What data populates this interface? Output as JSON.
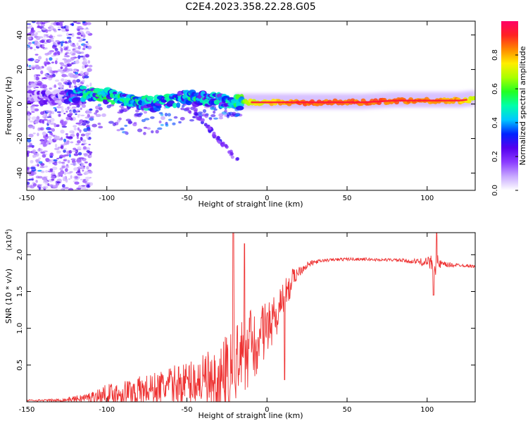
{
  "title": "C2E4.2023.358.22.28.G05",
  "colors": {
    "snr_line": "#ee3333",
    "axis": "#000000"
  },
  "chart_data": [
    {
      "type": "heatmap",
      "name": "spectrogram",
      "xlabel": "Height of straight line (km)",
      "ylabel": "Frequency (Hz)",
      "xlim": [
        -150,
        130
      ],
      "ylim": [
        -50,
        48
      ],
      "xticks": [
        -150,
        -100,
        -50,
        0,
        50,
        100
      ],
      "xtick_labels": [
        "-150",
        "-100",
        "-50",
        "0",
        "50",
        "100"
      ],
      "yticks": [
        -40,
        -20,
        0,
        20,
        40
      ],
      "ytick_labels": [
        "-40",
        "-20",
        "0",
        "20",
        "40"
      ],
      "colorbar": {
        "label": "Normalized spectral amplitude",
        "range": [
          0,
          1
        ],
        "ticks": [
          0,
          0.2,
          0.4,
          0.6,
          0.8
        ],
        "tick_labels": [
          "0.0",
          "0.2",
          "0.4",
          "0.6",
          "0.8"
        ],
        "colormap": [
          "#ffffff",
          "#c8a8ff",
          "#8c3cff",
          "#5500ee",
          "#0022ff",
          "#00c8ff",
          "#00ffaa",
          "#22ff22",
          "#aaff00",
          "#ffee00",
          "#ff8800",
          "#ff2222",
          "#ff0066"
        ]
      },
      "ridge": {
        "x": [
          -150,
          -130,
          -115,
          -100,
          -90,
          -80,
          -70,
          -60,
          -50,
          -40,
          -30,
          -20,
          -10,
          0,
          10,
          20,
          40,
          60,
          80,
          100,
          120,
          130
        ],
        "freq": [
          4,
          4,
          6,
          5,
          3,
          1,
          0,
          2,
          4,
          3,
          2,
          1,
          1,
          1,
          1,
          1,
          1,
          1,
          2,
          2,
          2,
          3
        ],
        "amplitude": [
          0.25,
          0.3,
          0.55,
          0.6,
          0.6,
          0.55,
          0.55,
          0.55,
          0.55,
          0.55,
          0.5,
          0.6,
          0.75,
          0.8,
          0.85,
          0.9,
          0.9,
          0.9,
          0.9,
          0.85,
          0.85,
          0.7
        ]
      }
    },
    {
      "type": "line",
      "name": "snr",
      "xlabel": "Height of straight line (km)",
      "ylabel": "SNR (10 * v/v)",
      "multiplier_label": "(x10",
      "multiplier_exp": "4",
      "multiplier_close": ")",
      "xlim": [
        -150,
        130
      ],
      "ylim": [
        0,
        2.3
      ],
      "xticks": [
        -150,
        -100,
        -50,
        0,
        50,
        100
      ],
      "xtick_labels": [
        "-150",
        "-100",
        "-50",
        "0",
        "50",
        "100"
      ],
      "yticks": [
        0.5,
        1.0,
        1.5,
        2.0
      ],
      "ytick_labels": [
        "0.5",
        "1.0",
        "1.5",
        "2.0"
      ],
      "envelope": {
        "x": [
          -150,
          -130,
          -120,
          -110,
          -100,
          -90,
          -80,
          -70,
          -60,
          -50,
          -40,
          -30,
          -25,
          -20,
          -15,
          -10,
          -5,
          0,
          5,
          10,
          15,
          20,
          25,
          30,
          35,
          40,
          50,
          60,
          70,
          80,
          90,
          100,
          105,
          110,
          120,
          130
        ],
        "base": [
          0.02,
          0.02,
          0.04,
          0.06,
          0.1,
          0.12,
          0.15,
          0.18,
          0.22,
          0.26,
          0.3,
          0.38,
          0.45,
          0.55,
          0.7,
          0.85,
          0.95,
          1.05,
          1.2,
          1.45,
          1.65,
          1.78,
          1.86,
          1.9,
          1.92,
          1.93,
          1.94,
          1.94,
          1.93,
          1.93,
          1.91,
          1.9,
          1.88,
          1.86,
          1.86,
          1.84
        ],
        "noise": [
          0.01,
          0.02,
          0.04,
          0.08,
          0.14,
          0.18,
          0.2,
          0.22,
          0.26,
          0.3,
          0.34,
          0.42,
          0.5,
          0.55,
          0.45,
          0.4,
          0.35,
          0.3,
          0.25,
          0.2,
          0.15,
          0.08,
          0.05,
          0.03,
          0.02,
          0.02,
          0.02,
          0.02,
          0.02,
          0.02,
          0.03,
          0.06,
          0.16,
          0.05,
          0.02,
          0.02
        ]
      },
      "spikes": [
        {
          "x": -21,
          "y": 2.3
        },
        {
          "x": -14,
          "y": 2.15
        },
        {
          "x": 106,
          "y": 2.3
        },
        {
          "x": 104,
          "y": 1.45
        },
        {
          "x": 11,
          "y": 0.3
        }
      ]
    }
  ]
}
